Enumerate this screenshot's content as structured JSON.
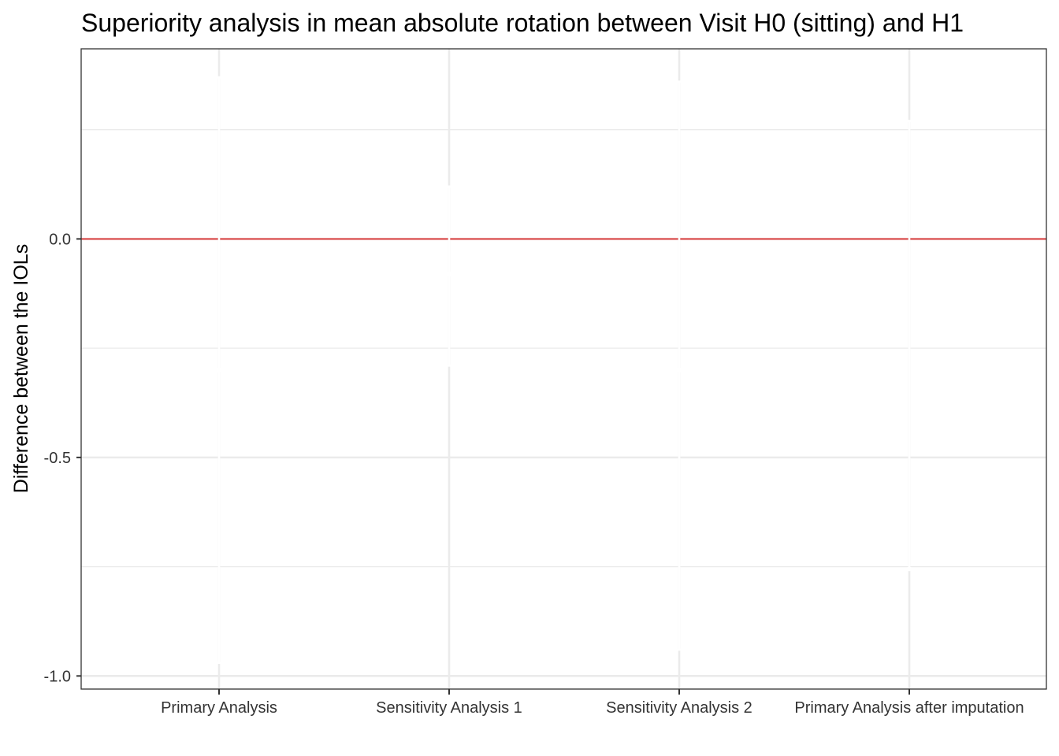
{
  "chart_data": {
    "type": "errorbar",
    "title": "Superiority analysis in mean absolute rotation between Visit H0 (sitting) and H1",
    "xlabel": "",
    "ylabel": "Difference between the IOLs",
    "categories": [
      "Primary Analysis",
      "Sensitivity Analysis 1",
      "Sensitivity Analysis 2",
      "Primary Analysis after imputation"
    ],
    "series": [
      {
        "estimate": [
          -0.3,
          -0.08,
          -0.3,
          -0.755
        ],
        "lower": [
          -0.97,
          -0.29,
          -0.94,
          -0.755
        ],
        "upper": [
          0.37,
          0.12,
          0.36,
          0.27
        ]
      }
    ],
    "reference_line": {
      "y": 0,
      "color": "#e06666"
    },
    "y_ticks": [
      0.0,
      -0.5,
      -1.0
    ],
    "y_tick_labels": [
      "0.0",
      "-0.5",
      "-1.0"
    ],
    "ylim": [
      -1.03,
      0.435
    ],
    "grid": true,
    "colors": {
      "errorbar": "#ffffff",
      "grid": "#ebebeb",
      "border": "#333333"
    }
  }
}
